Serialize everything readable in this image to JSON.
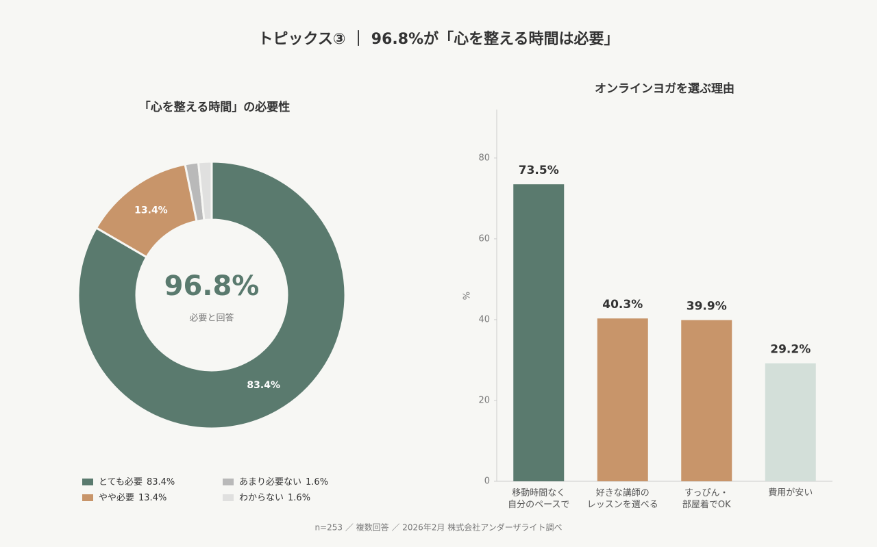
{
  "title": "トピックス③ ｜ 96.8%が「心を整える時間は必要」",
  "footnote": "n=253 ／ 複数回答 ／ 2026年2月 株式会社アンダーザライト調べ",
  "chart_data": [
    {
      "type": "donut",
      "title": "「心を整える時間」の必要性",
      "categories": [
        "とても必要",
        "やや必要",
        "あまり必要ない",
        "わからない"
      ],
      "values": [
        83.4,
        13.4,
        1.6,
        1.6
      ],
      "value_labels": [
        "83.4%",
        "13.4%",
        "1.6%",
        "1.6%"
      ],
      "colors": [
        "#5a7a6e",
        "#c8956a",
        "#b9b9b9",
        "#e0e0df"
      ],
      "center_label": "96.8%",
      "center_sublabel": "必要と回答",
      "legend": "bottom"
    },
    {
      "type": "bar",
      "title": "オンラインヨガを選ぶ理由",
      "ylabel": "%",
      "categories": [
        "移動時間なく\n自分のペースで",
        "好きな講師の\nレッスンを選べる",
        "すっぴん・\n部屋着でOK",
        "費用が安い"
      ],
      "values": [
        73.5,
        40.3,
        39.9,
        29.2
      ],
      "value_labels": [
        "73.5%",
        "40.3%",
        "39.9%",
        "29.2%"
      ],
      "colors": [
        "#5a7a6e",
        "#c8956a",
        "#c8956a",
        "#d3dfd9"
      ],
      "ylim": [
        0,
        92
      ],
      "yticks": [
        0,
        20,
        40,
        60,
        80
      ],
      "grid": false
    }
  ]
}
